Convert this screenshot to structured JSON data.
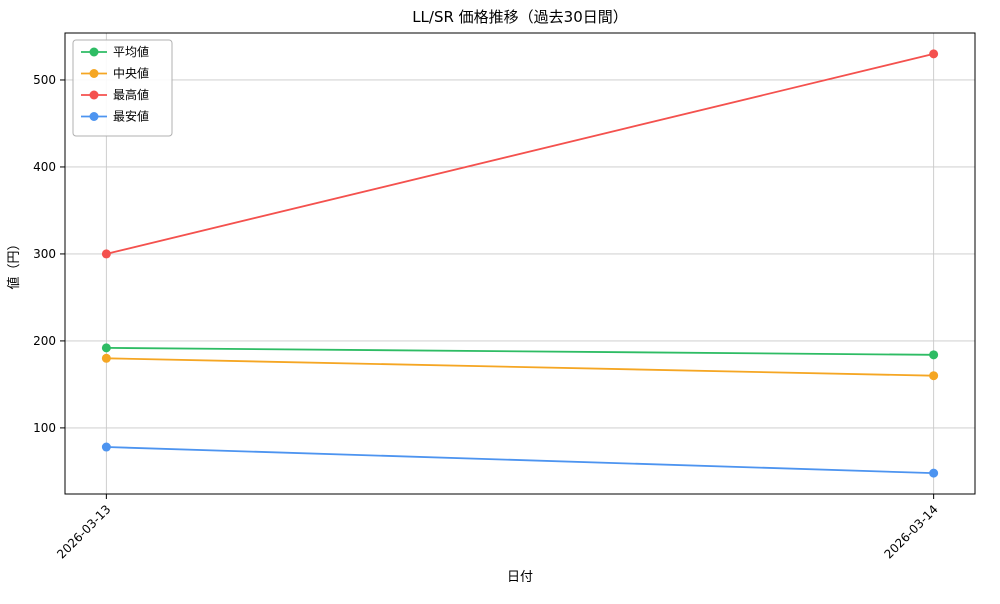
{
  "chart_data": {
    "type": "line",
    "title": "LL/SR 価格推移（過去30日間）",
    "xlabel": "日付",
    "ylabel": "値（円）",
    "categories": [
      "2026-03-13",
      "2026-03-14"
    ],
    "series": [
      {
        "name": "平均値",
        "color": "#2ebc64",
        "values": [
          192,
          184
        ]
      },
      {
        "name": "中央値",
        "color": "#f5a623",
        "values": [
          180,
          160
        ]
      },
      {
        "name": "最高値",
        "color": "#f4514e",
        "values": [
          300,
          530
        ]
      },
      {
        "name": "最安値",
        "color": "#4d94f0",
        "values": [
          78,
          48
        ]
      }
    ],
    "yticks": [
      100,
      200,
      300,
      400,
      500
    ],
    "ylim": [
      24,
      554
    ],
    "grid": true,
    "grid_color": "#c9c9c9",
    "axis_color": "#000000",
    "legend_position": "upper left"
  }
}
